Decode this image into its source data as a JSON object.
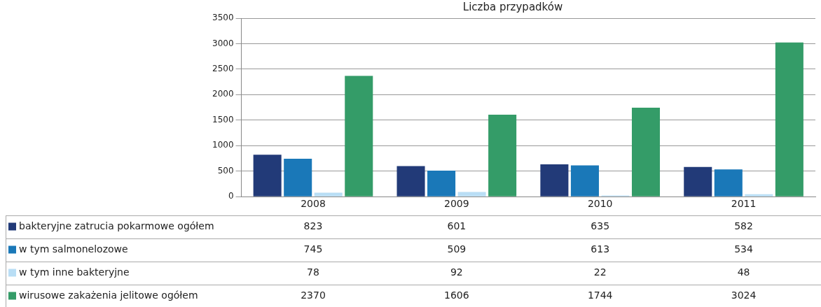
{
  "chart_data": {
    "type": "bar",
    "title": "Liczba przypadków",
    "categories": [
      "2008",
      "2009",
      "2010",
      "2011"
    ],
    "series": [
      {
        "name": "bakteryjne zatrucia pokarmowe ogółem",
        "color": "#223a78",
        "values": [
          823,
          601,
          635,
          582
        ]
      },
      {
        "name": "w tym salmonelozowe",
        "color": "#1a78b8",
        "values": [
          745,
          509,
          613,
          534
        ]
      },
      {
        "name": "w tym inne bakteryjne",
        "color": "#b9def5",
        "values": [
          78,
          92,
          22,
          48
        ]
      },
      {
        "name": "wirusowe zakażenia jelitowe ogółem",
        "color": "#349c68",
        "values": [
          2370,
          1606,
          1744,
          3024
        ]
      }
    ],
    "ylim": [
      0,
      3500
    ],
    "yticks": [
      0,
      500,
      1000,
      1500,
      2000,
      2500,
      3000,
      3500
    ],
    "grid": "y",
    "legend": "bottom",
    "data_labels": true
  }
}
